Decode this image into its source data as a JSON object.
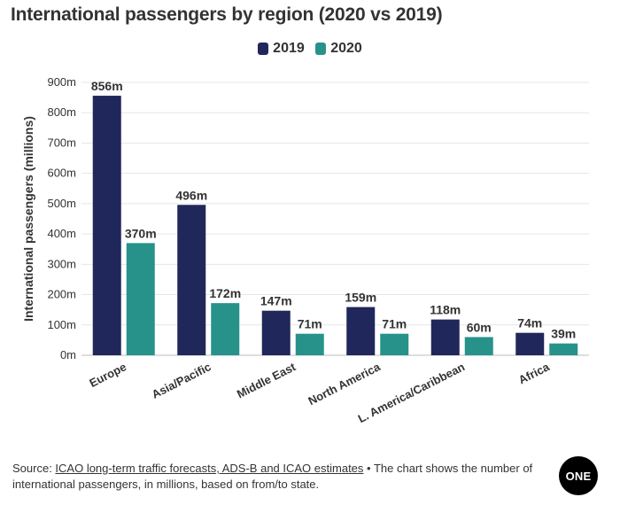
{
  "chart_data": {
    "type": "bar",
    "title": "International passengers by region (2020 vs 2019)",
    "ylabel": "International passengers (millions)",
    "xlabel": "",
    "ylim": [
      0,
      900
    ],
    "yticks": [
      0,
      100,
      200,
      300,
      400,
      500,
      600,
      700,
      800,
      900
    ],
    "ytick_labels": [
      "0m",
      "100m",
      "200m",
      "300m",
      "400m",
      "500m",
      "600m",
      "700m",
      "800m",
      "900m"
    ],
    "categories": [
      "Europe",
      "Asia/Pacific",
      "Middle East",
      "North America",
      "L. America/Caribbean",
      "Africa"
    ],
    "series": [
      {
        "name": "2019",
        "color": "#20275a",
        "values": [
          856,
          496,
          147,
          159,
          118,
          74
        ],
        "labels": [
          "856m",
          "496m",
          "147m",
          "159m",
          "118m",
          "74m"
        ]
      },
      {
        "name": "2020",
        "color": "#27928a",
        "values": [
          370,
          172,
          71,
          71,
          60,
          39
        ],
        "labels": [
          "370m",
          "172m",
          "71m",
          "71m",
          "60m",
          "39m"
        ]
      }
    ],
    "grid": true,
    "legend_position": "top-center"
  },
  "footer": {
    "source_prefix": "Source: ",
    "source_link": "ICAO long-term traffic forecasts, ADS-B and ICAO estimates",
    "note": " • The chart shows the number of international passengers, in millions, based on from/to state."
  },
  "logo": {
    "text": "ONE",
    "color": "#000000"
  }
}
